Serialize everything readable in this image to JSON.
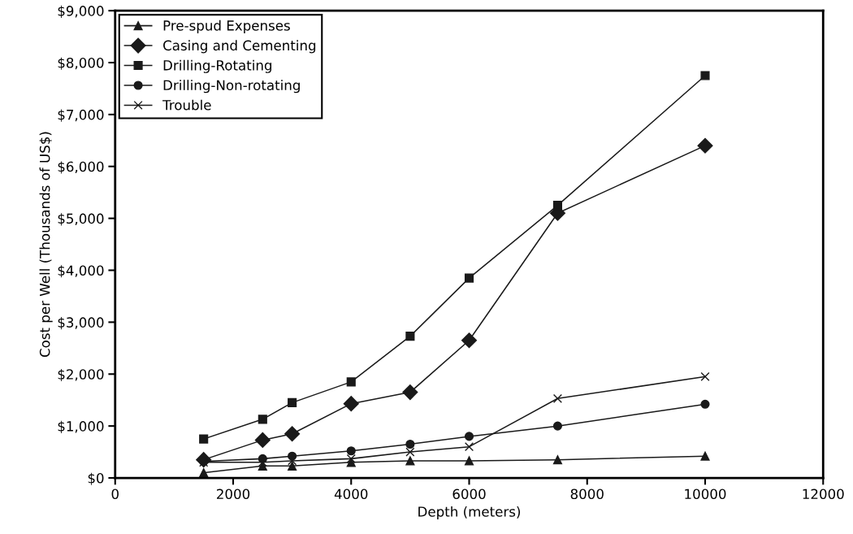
{
  "chart_data": {
    "type": "line",
    "xlabel": "Depth (meters)",
    "ylabel": "Cost per Well (Thousands of US$)",
    "x": [
      1500,
      2500,
      3000,
      4000,
      5000,
      6000,
      7500,
      10000
    ],
    "series": [
      {
        "name": "Pre-spud Expenses",
        "color": "#1a1a1a",
        "marker": "triangle",
        "values": [
          100,
          230,
          230,
          300,
          330,
          330,
          350,
          420
        ]
      },
      {
        "name": "Casing and Cementing",
        "color": "#1a1a1a",
        "marker": "diamond",
        "values": [
          350,
          730,
          850,
          1430,
          1650,
          2650,
          5100,
          6400
        ]
      },
      {
        "name": "Drilling-Rotating",
        "color": "#1a1a1a",
        "marker": "square",
        "values": [
          750,
          1130,
          1450,
          1850,
          2730,
          3850,
          5250,
          7750
        ]
      },
      {
        "name": "Drilling-Non-rotating",
        "color": "#1a1a1a",
        "marker": "circle",
        "values": [
          320,
          370,
          420,
          520,
          650,
          800,
          1000,
          1420
        ]
      },
      {
        "name": "Trouble",
        "color": "#1a1a1a",
        "marker": "cross",
        "values": [
          300,
          300,
          330,
          370,
          500,
          600,
          1530,
          1950
        ]
      }
    ],
    "xlim": [
      0,
      12000
    ],
    "xticks": [
      0,
      2000,
      4000,
      6000,
      8000,
      10000,
      12000
    ],
    "ylim": [
      0,
      9000
    ],
    "yticks": [
      {
        "value": 0,
        "label": "$0"
      },
      {
        "value": 1000,
        "label": "$1,000"
      },
      {
        "value": 2000,
        "label": "$2,000"
      },
      {
        "value": 3000,
        "label": "$3,000"
      },
      {
        "value": 4000,
        "label": "$4,000"
      },
      {
        "value": 5000,
        "label": "$5,000"
      },
      {
        "value": 6000,
        "label": "$6,000"
      },
      {
        "value": 7000,
        "label": "$7,000"
      },
      {
        "value": 8000,
        "label": "$8,000"
      },
      {
        "value": 9000,
        "label": "$9,000"
      }
    ],
    "grid": false,
    "legend": "top left",
    "line_style": "solid"
  }
}
